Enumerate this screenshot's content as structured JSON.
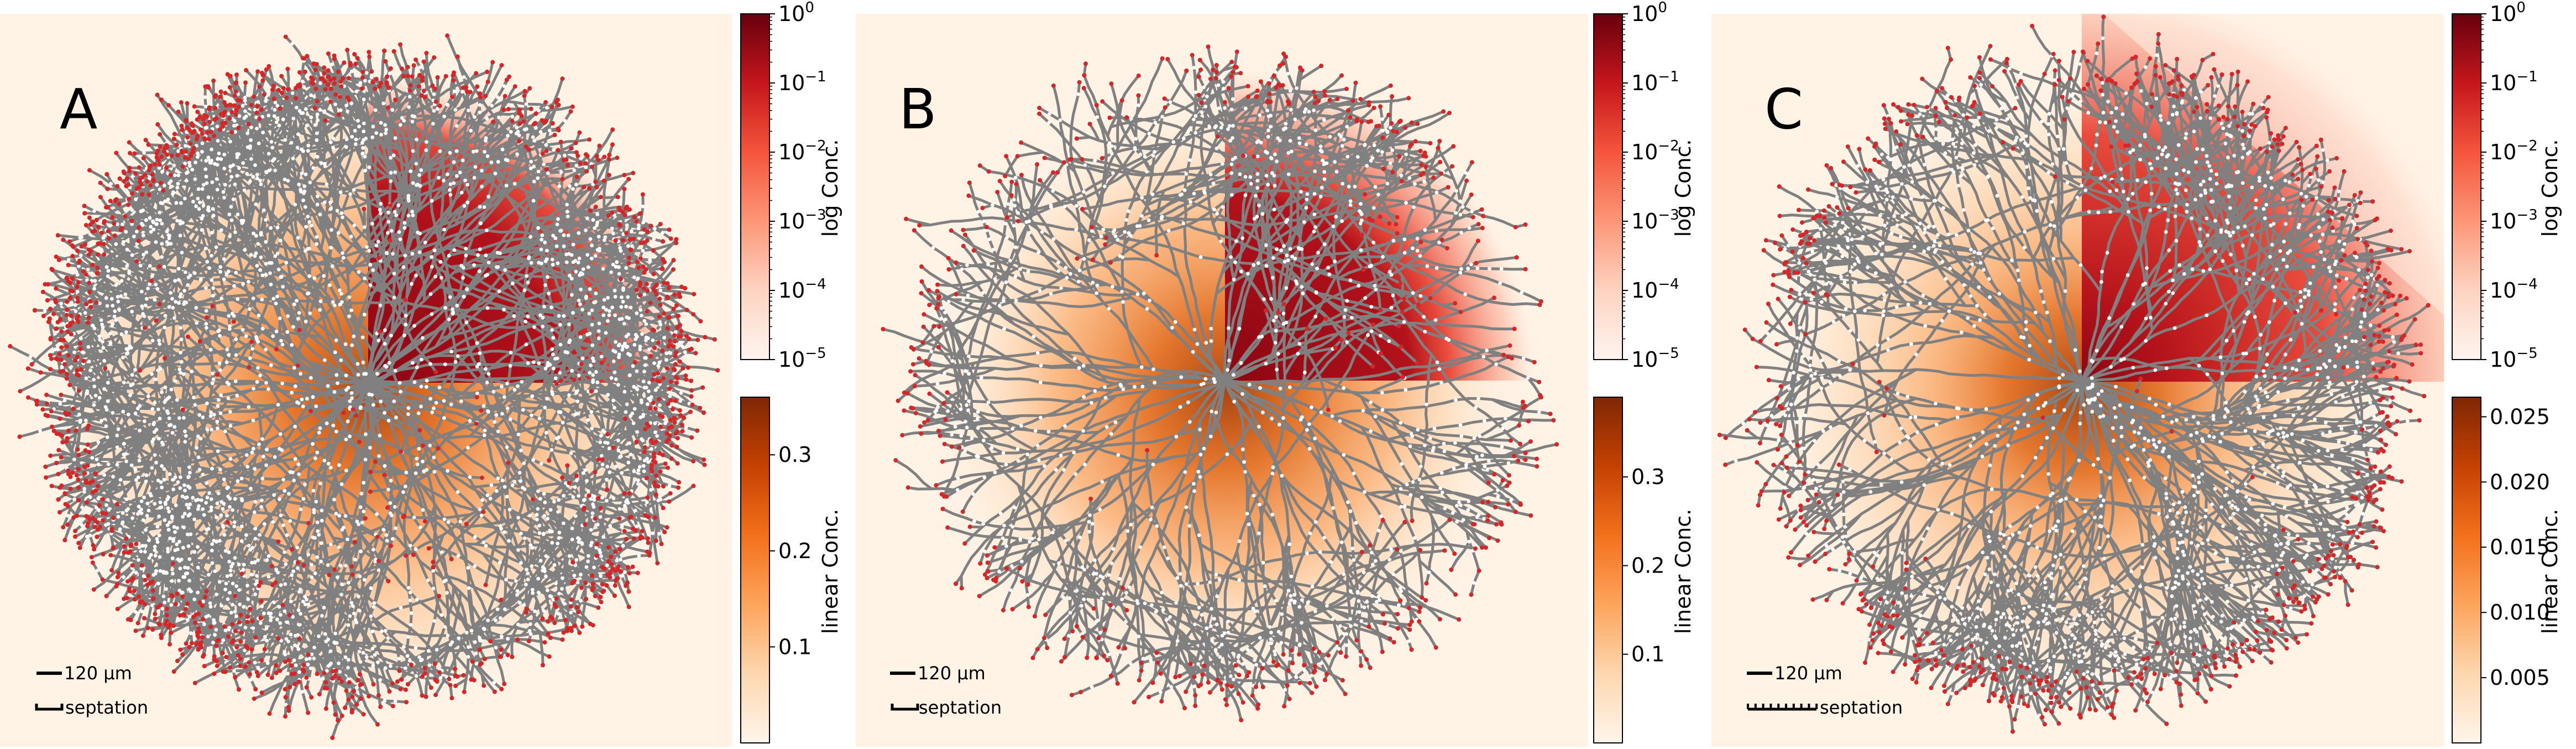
{
  "figure": {
    "panels": [
      {
        "label": "A",
        "scale_bar_text": "120 µm",
        "septation_text": "septation",
        "log_colorbar": {
          "title": "log Conc.",
          "ticks": [
            {
              "base": "10",
              "exp": "0"
            },
            {
              "base": "10",
              "exp": "−1"
            },
            {
              "base": "10",
              "exp": "−2"
            },
            {
              "base": "10",
              "exp": "−3"
            },
            {
              "base": "10",
              "exp": "−4"
            },
            {
              "base": "10",
              "exp": "−5"
            }
          ]
        },
        "linear_colorbar": {
          "title": "linear Conc.",
          "max": 0.36,
          "ticks": [
            {
              "value": 0.3,
              "label": "0.3"
            },
            {
              "value": 0.2,
              "label": "0.2"
            },
            {
              "value": 0.1,
              "label": "0.1"
            }
          ]
        }
      },
      {
        "label": "B",
        "scale_bar_text": "120 µm",
        "septation_text": "septation",
        "log_colorbar": {
          "title": "log Conc.",
          "ticks": [
            {
              "base": "10",
              "exp": "0"
            },
            {
              "base": "10",
              "exp": "−1"
            },
            {
              "base": "10",
              "exp": "−2"
            },
            {
              "base": "10",
              "exp": "−3"
            },
            {
              "base": "10",
              "exp": "−4"
            },
            {
              "base": "10",
              "exp": "−5"
            }
          ]
        },
        "linear_colorbar": {
          "title": "linear Conc.",
          "max": 0.39,
          "ticks": [
            {
              "value": 0.3,
              "label": "0.3"
            },
            {
              "value": 0.2,
              "label": "0.2"
            },
            {
              "value": 0.1,
              "label": "0.1"
            }
          ]
        }
      },
      {
        "label": "C",
        "scale_bar_text": "120 µm",
        "septation_text": "septation",
        "log_colorbar": {
          "title": "log Conc.",
          "ticks": [
            {
              "base": "10",
              "exp": "0"
            },
            {
              "base": "10",
              "exp": "−1"
            },
            {
              "base": "10",
              "exp": "−2"
            },
            {
              "base": "10",
              "exp": "−3"
            },
            {
              "base": "10",
              "exp": "−4"
            },
            {
              "base": "10",
              "exp": "−5"
            }
          ]
        },
        "linear_colorbar": {
          "title": "linear Conc.",
          "max": 0.0265,
          "ticks": [
            {
              "value": 0.025,
              "label": "0.025"
            },
            {
              "value": 0.02,
              "label": "0.020"
            },
            {
              "value": 0.015,
              "label": "0.015"
            },
            {
              "value": 0.01,
              "label": "0.010"
            },
            {
              "value": 0.005,
              "label": "0.005"
            }
          ]
        }
      }
    ],
    "colors": {
      "background": "#fff3e6",
      "hypha": "#808080",
      "tip": "#d62728",
      "septum": "#ffffff",
      "log_high": "#67000d",
      "linear_high": "#7f2704"
    }
  }
}
